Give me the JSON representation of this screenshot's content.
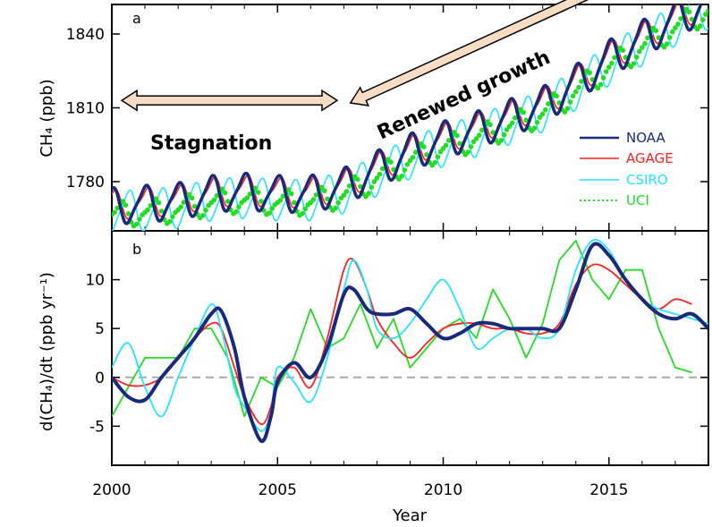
{
  "chart_data": [
    {
      "panel": "a",
      "type": "line",
      "ylabel": "CH₄ (ppb)",
      "xlim": [
        2000,
        2018
      ],
      "ylim": [
        1760,
        1852
      ],
      "x_ticks": [
        2000,
        2005,
        2010,
        2015
      ],
      "y_ticks": [
        1780,
        1810,
        1840
      ],
      "legend_position": "right-middle",
      "annotations": [
        {
          "text": "Stagnation",
          "arrow": "double-headed",
          "from": [
            2000.3,
            1813
          ],
          "to": [
            2006.8,
            1813
          ]
        },
        {
          "text": "Renewed growth",
          "arrow": "double-headed",
          "from": [
            2007.2,
            1812
          ],
          "to": [
            2017.3,
            1874
          ]
        }
      ],
      "trend_points": [
        [
          2000,
          1770
        ],
        [
          2001,
          1771
        ],
        [
          2002,
          1772
        ],
        [
          2003,
          1775
        ],
        [
          2004,
          1776
        ],
        [
          2005,
          1775
        ],
        [
          2006,
          1775
        ],
        [
          2007,
          1778
        ],
        [
          2008,
          1785
        ],
        [
          2009,
          1792
        ],
        [
          2010,
          1797
        ],
        [
          2011,
          1801
        ],
        [
          2012,
          1806
        ],
        [
          2013,
          1811
        ],
        [
          2014,
          1820
        ],
        [
          2015,
          1830
        ],
        [
          2016,
          1838
        ],
        [
          2017,
          1846
        ],
        [
          2018,
          1853
        ]
      ],
      "series": [
        {
          "name": "NOAA",
          "color": "#1a2a7a",
          "style": "solid-thick",
          "seasonal_amp": 7.0,
          "phase": 0.0
        },
        {
          "name": "AGAGE",
          "color": "#ff2020",
          "style": "solid",
          "offset": 0.5,
          "seasonal_amp": 5.5,
          "phase": 0.05
        },
        {
          "name": "CSIRO",
          "color": "#22e5ff",
          "style": "solid",
          "offset": -2.5,
          "seasonal_amp": 8.0,
          "phase": 0.5
        },
        {
          "name": "UCI",
          "color": "#22dd22",
          "style": "dotted",
          "offset": -3.5,
          "seasonal_amp": 4.5,
          "phase": 0.25
        }
      ]
    },
    {
      "panel": "b",
      "type": "line",
      "xlabel": "Year",
      "ylabel": "d(CH₄)/dt (ppb yr⁻¹)",
      "xlim": [
        2000,
        2018
      ],
      "ylim": [
        -9,
        15
      ],
      "x_ticks": [
        2000,
        2005,
        2010,
        2015
      ],
      "y_ticks": [
        -5,
        0,
        5,
        10
      ],
      "zero_line": "dashed",
      "series": [
        {
          "name": "NOAA",
          "color": "#1a2a7a",
          "style": "solid-thick",
          "x": [
            2000,
            2000.5,
            2001,
            2001.5,
            2002,
            2002.5,
            2003,
            2003.3,
            2003.7,
            2004,
            2004.5,
            2004.8,
            2005,
            2005.5,
            2006,
            2006.5,
            2007,
            2007.3,
            2007.7,
            2008,
            2008.5,
            2009,
            2009.5,
            2010,
            2010.5,
            2011,
            2011.5,
            2012,
            2012.5,
            2013,
            2013.5,
            2014,
            2014.5,
            2015,
            2015.5,
            2016,
            2016.5,
            2017,
            2017.5,
            2018
          ],
          "y": [
            0,
            -2,
            -2.3,
            0,
            2,
            4,
            6.5,
            6.8,
            3,
            -2,
            -6.5,
            -4,
            -0.5,
            1.5,
            0,
            3,
            8.5,
            9,
            7,
            6.5,
            6.5,
            7,
            5.5,
            4,
            4.5,
            5.5,
            5.5,
            5,
            5,
            5,
            5,
            9,
            13.5,
            12.5,
            10,
            8,
            6.5,
            6,
            6.5,
            5
          ]
        },
        {
          "name": "AGAGE",
          "color": "#ff2020",
          "style": "solid",
          "x": [
            2000,
            2000.5,
            2001,
            2001.5,
            2002,
            2002.5,
            2003,
            2003.3,
            2003.7,
            2004,
            2004.5,
            2004.8,
            2005,
            2005.5,
            2006,
            2006.5,
            2007,
            2007.3,
            2007.7,
            2008,
            2008.5,
            2009,
            2009.5,
            2010,
            2010.5,
            2011,
            2011.5,
            2012,
            2012.5,
            2013,
            2013.5,
            2014,
            2014.5,
            2015,
            2015.5,
            2016,
            2016.5,
            2017,
            2017.5
          ],
          "y": [
            0,
            -0.8,
            -0.8,
            0,
            2,
            4,
            5.5,
            5,
            1,
            -2,
            -4.8,
            -3,
            0,
            1,
            -1,
            4,
            11,
            12,
            9,
            6,
            3.5,
            2,
            3.5,
            5,
            5.5,
            5.5,
            5,
            5,
            4.5,
            4.5,
            5.5,
            9.5,
            11.5,
            11,
            9.5,
            8,
            7,
            8,
            7.5
          ]
        },
        {
          "name": "CSIRO",
          "color": "#22e5ff",
          "style": "solid",
          "x": [
            2000,
            2000.5,
            2001,
            2001.5,
            2002,
            2002.5,
            2003,
            2003.3,
            2003.7,
            2004,
            2004.5,
            2004.8,
            2005,
            2005.5,
            2006,
            2006.5,
            2007,
            2007.3,
            2007.7,
            2008,
            2008.5,
            2009,
            2009.5,
            2010,
            2010.5,
            2011,
            2011.5,
            2012,
            2012.5,
            2013,
            2013.5,
            2014,
            2014.5,
            2015,
            2015.5,
            2016,
            2016.5,
            2017,
            2017.5,
            2018
          ],
          "y": [
            1,
            3.5,
            -1,
            -4,
            0,
            4,
            7.5,
            5,
            -1,
            -3,
            -5.5,
            -3.5,
            1,
            -0.5,
            -2.5,
            2,
            9,
            12,
            9,
            5,
            4,
            5.5,
            8,
            10,
            7,
            3,
            4,
            5,
            5,
            4,
            5,
            11,
            14,
            13,
            10,
            8,
            7,
            6.5,
            6,
            5.5
          ]
        },
        {
          "name": "UCI",
          "color": "#22dd22",
          "style": "solid",
          "x": [
            2000,
            2000.5,
            2001,
            2001.5,
            2002,
            2002.5,
            2003,
            2003.5,
            2004,
            2004.5,
            2005,
            2005.5,
            2006,
            2006.5,
            2007,
            2007.5,
            2008,
            2008.5,
            2009,
            2009.5,
            2010,
            2010.5,
            2011,
            2011.5,
            2012,
            2012.5,
            2013,
            2013.5,
            2014,
            2014.5,
            2015,
            2015.5,
            2016,
            2016.5,
            2017,
            2017.5
          ],
          "y": [
            -4,
            -1,
            2,
            2,
            2,
            5,
            5,
            2,
            -4,
            0,
            -1,
            2,
            7,
            3,
            4,
            7.5,
            3,
            6,
            1,
            3,
            5,
            6,
            4,
            9,
            6,
            2,
            5.5,
            12,
            14,
            10,
            8,
            11,
            11,
            5,
            1,
            0.5
          ]
        }
      ]
    }
  ]
}
